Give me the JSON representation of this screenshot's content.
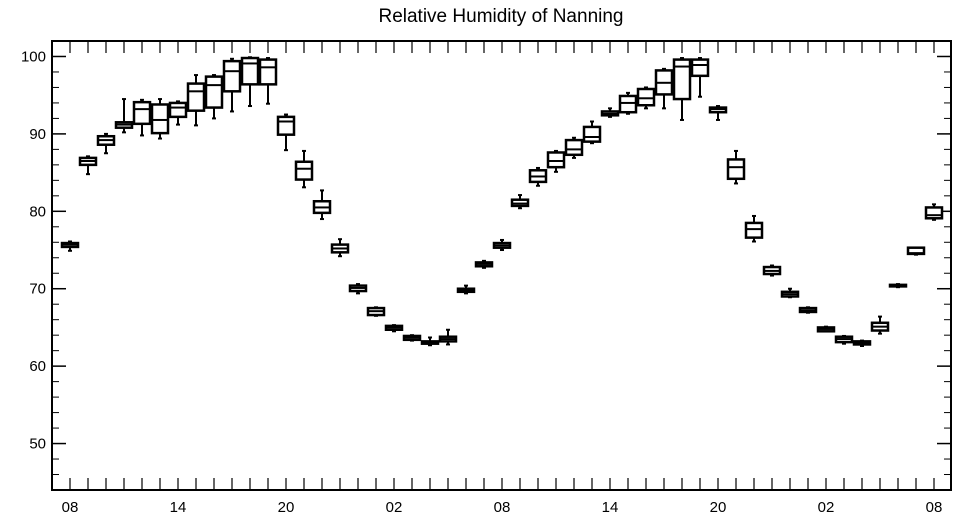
{
  "chart_data": {
    "type": "box",
    "title": "Relative Humidity of Nanning",
    "xlabel": "",
    "ylabel": "",
    "ylim": [
      44,
      102
    ],
    "x_ticks": [
      "08",
      "14",
      "20",
      "02",
      "08",
      "14",
      "20",
      "02",
      "08"
    ],
    "y_ticks": [
      "50",
      "60",
      "70",
      "80",
      "90",
      "100"
    ],
    "grid": false,
    "boxes": [
      {
        "x": 0,
        "min": 74.9,
        "q1": 75.4,
        "median": 75.7,
        "q3": 75.9,
        "max": 76.1
      },
      {
        "x": 1,
        "min": 84.8,
        "q1": 86.0,
        "median": 86.5,
        "q3": 86.9,
        "max": 87.1
      },
      {
        "x": 2,
        "min": 87.5,
        "q1": 88.6,
        "median": 89.2,
        "q3": 89.7,
        "max": 90.0
      },
      {
        "x": 3,
        "min": 90.2,
        "q1": 90.8,
        "median": 91.2,
        "q3": 91.5,
        "max": 94.5
      },
      {
        "x": 4,
        "min": 89.8,
        "q1": 91.3,
        "median": 93.2,
        "q3": 94.1,
        "max": 94.4
      },
      {
        "x": 5,
        "min": 89.4,
        "q1": 90.1,
        "median": 91.8,
        "q3": 93.8,
        "max": 94.5
      },
      {
        "x": 6,
        "min": 91.2,
        "q1": 92.2,
        "median": 93.4,
        "q3": 94.0,
        "max": 94.2
      },
      {
        "x": 7,
        "min": 91.1,
        "q1": 93.0,
        "median": 95.5,
        "q3": 96.5,
        "max": 97.6
      },
      {
        "x": 8,
        "min": 92.0,
        "q1": 93.4,
        "median": 96.3,
        "q3": 97.4,
        "max": 97.6
      },
      {
        "x": 9,
        "min": 92.9,
        "q1": 95.5,
        "median": 98.1,
        "q3": 99.4,
        "max": 99.7
      },
      {
        "x": 10,
        "min": 93.6,
        "q1": 96.4,
        "median": 99.1,
        "q3": 99.8,
        "max": 99.9
      },
      {
        "x": 11,
        "min": 93.9,
        "q1": 96.4,
        "median": 98.6,
        "q3": 99.6,
        "max": 99.8
      },
      {
        "x": 12,
        "min": 87.9,
        "q1": 89.9,
        "median": 91.6,
        "q3": 92.2,
        "max": 92.5
      },
      {
        "x": 13,
        "min": 83.1,
        "q1": 84.1,
        "median": 85.5,
        "q3": 86.4,
        "max": 87.8
      },
      {
        "x": 14,
        "min": 79.0,
        "q1": 79.8,
        "median": 80.5,
        "q3": 81.3,
        "max": 82.7
      },
      {
        "x": 15,
        "min": 74.2,
        "q1": 74.7,
        "median": 75.2,
        "q3": 75.7,
        "max": 76.4
      },
      {
        "x": 16,
        "min": 69.4,
        "q1": 69.7,
        "median": 70.1,
        "q3": 70.4,
        "max": 70.6
      },
      {
        "x": 17,
        "min": 66.5,
        "q1": 66.6,
        "median": 67.1,
        "q3": 67.5,
        "max": 67.6
      },
      {
        "x": 18,
        "min": 64.5,
        "q1": 64.7,
        "median": 65.0,
        "q3": 65.2,
        "max": 65.3
      },
      {
        "x": 19,
        "min": 63.3,
        "q1": 63.4,
        "median": 63.7,
        "q3": 63.9,
        "max": 64.0
      },
      {
        "x": 20,
        "min": 62.7,
        "q1": 62.9,
        "median": 63.1,
        "q3": 63.2,
        "max": 63.7
      },
      {
        "x": 21,
        "min": 62.8,
        "q1": 63.2,
        "median": 63.5,
        "q3": 63.8,
        "max": 64.7
      },
      {
        "x": 22,
        "min": 69.4,
        "q1": 69.6,
        "median": 69.8,
        "q3": 70.0,
        "max": 70.4
      },
      {
        "x": 23,
        "min": 72.7,
        "q1": 72.9,
        "median": 73.2,
        "q3": 73.4,
        "max": 73.6
      },
      {
        "x": 24,
        "min": 75.0,
        "q1": 75.3,
        "median": 75.6,
        "q3": 75.9,
        "max": 76.3
      },
      {
        "x": 25,
        "min": 80.4,
        "q1": 80.7,
        "median": 81.0,
        "q3": 81.5,
        "max": 82.1
      },
      {
        "x": 26,
        "min": 83.3,
        "q1": 83.8,
        "median": 84.5,
        "q3": 85.3,
        "max": 85.6
      },
      {
        "x": 27,
        "min": 85.1,
        "q1": 85.7,
        "median": 86.5,
        "q3": 87.6,
        "max": 87.8
      },
      {
        "x": 28,
        "min": 86.9,
        "q1": 87.3,
        "median": 88.0,
        "q3": 89.2,
        "max": 89.5
      },
      {
        "x": 29,
        "min": 88.8,
        "q1": 89.0,
        "median": 89.6,
        "q3": 90.9,
        "max": 91.6
      },
      {
        "x": 30,
        "min": 92.2,
        "q1": 92.4,
        "median": 92.6,
        "q3": 92.9,
        "max": 93.3
      },
      {
        "x": 31,
        "min": 92.6,
        "q1": 92.8,
        "median": 94.0,
        "q3": 94.9,
        "max": 95.3
      },
      {
        "x": 32,
        "min": 93.3,
        "q1": 93.7,
        "median": 94.6,
        "q3": 95.8,
        "max": 96.0
      },
      {
        "x": 33,
        "min": 93.3,
        "q1": 95.1,
        "median": 96.6,
        "q3": 98.2,
        "max": 98.4
      },
      {
        "x": 34,
        "min": 91.8,
        "q1": 94.5,
        "median": 98.7,
        "q3": 99.6,
        "max": 99.8
      },
      {
        "x": 35,
        "min": 94.8,
        "q1": 97.5,
        "median": 98.9,
        "q3": 99.6,
        "max": 99.8
      },
      {
        "x": 36,
        "min": 91.8,
        "q1": 92.8,
        "median": 93.2,
        "q3": 93.4,
        "max": 93.6
      },
      {
        "x": 37,
        "min": 83.6,
        "q1": 84.2,
        "median": 85.7,
        "q3": 86.7,
        "max": 87.8
      },
      {
        "x": 38,
        "min": 76.1,
        "q1": 76.6,
        "median": 77.7,
        "q3": 78.5,
        "max": 79.4
      },
      {
        "x": 39,
        "min": 71.7,
        "q1": 71.9,
        "median": 72.3,
        "q3": 72.8,
        "max": 73.0
      },
      {
        "x": 40,
        "min": 68.9,
        "q1": 69.0,
        "median": 69.3,
        "q3": 69.6,
        "max": 70.0
      },
      {
        "x": 41,
        "min": 66.9,
        "q1": 67.0,
        "median": 67.2,
        "q3": 67.5,
        "max": 67.6
      },
      {
        "x": 42,
        "min": 64.5,
        "q1": 64.5,
        "median": 64.8,
        "q3": 65.0,
        "max": 65.1
      },
      {
        "x": 43,
        "min": 62.9,
        "q1": 63.1,
        "median": 63.5,
        "q3": 63.8,
        "max": 63.9
      },
      {
        "x": 44,
        "min": 62.6,
        "q1": 62.8,
        "median": 63.0,
        "q3": 63.2,
        "max": 63.3
      },
      {
        "x": 45,
        "min": 64.2,
        "q1": 64.6,
        "median": 65.1,
        "q3": 65.6,
        "max": 66.4
      },
      {
        "x": 46,
        "min": 70.2,
        "q1": 70.3,
        "median": 70.4,
        "q3": 70.5,
        "max": 70.6
      },
      {
        "x": 47,
        "min": 74.4,
        "q1": 74.5,
        "median": 74.6,
        "q3": 75.3,
        "max": 75.3
      },
      {
        "x": 48,
        "min": 78.9,
        "q1": 79.1,
        "median": 79.5,
        "q3": 80.5,
        "max": 80.9
      }
    ]
  }
}
